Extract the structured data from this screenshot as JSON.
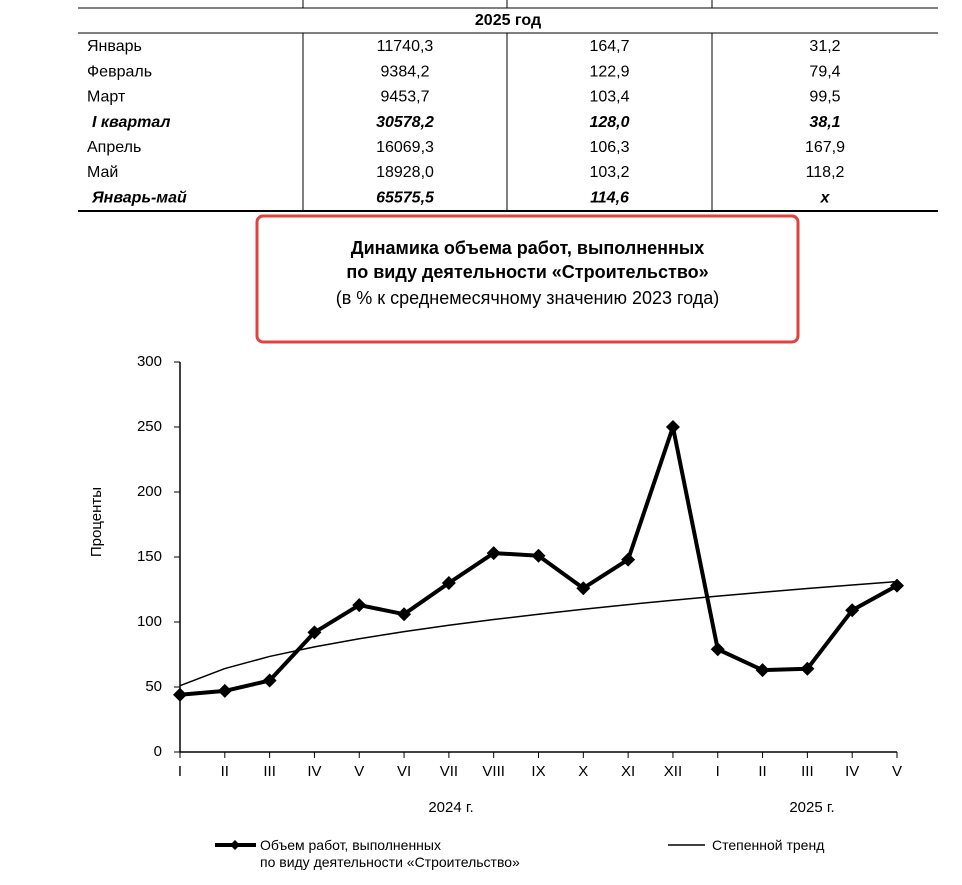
{
  "table": {
    "header": "2025 год",
    "rows": [
      [
        "Январь",
        "11740,3",
        "164,7",
        "31,2"
      ],
      [
        "Февраль",
        "9384,2",
        "122,9",
        "79,4"
      ],
      [
        "Март",
        "9453,7",
        "103,4",
        "99,5"
      ],
      [
        "I квартал",
        "30578,2",
        "128,0",
        "38,1"
      ],
      [
        "Апрель",
        "16069,3",
        "106,3",
        "167,9"
      ],
      [
        "Май",
        "18928,0",
        "103,2",
        "118,2"
      ],
      [
        "Январь-май",
        "65575,5",
        "114,6",
        "x"
      ]
    ],
    "bold_rows": [
      3,
      6
    ]
  },
  "chart_data": {
    "type": "line",
    "title": "Динамика объема работ, выполненных\nпо виду деятельности «Строительство»",
    "subtitle": "(в % к среднемесячному значению 2023 года)",
    "y_label": "Проценты",
    "groups": [
      "2024 г.",
      "2025 г."
    ],
    "categories": [
      "I",
      "II",
      "III",
      "IV",
      "V",
      "VI",
      "VII",
      "VIII",
      "IX",
      "X",
      "XI",
      "XII",
      "I",
      "II",
      "III",
      "IV",
      "V"
    ],
    "series": [
      {
        "name": "Объем работ, выполненных\nпо виду деятельности «Строительство»",
        "color": "#000000",
        "marker": "diamond",
        "values": [
          44,
          47,
          55,
          92,
          113,
          106,
          130,
          153,
          151,
          126,
          148,
          250,
          79,
          63,
          64,
          109,
          128
        ]
      },
      {
        "name": "Степенной тренд",
        "color": "#000000",
        "marker": "none",
        "values": [
          51,
          64.2,
          73.5,
          80.9,
          87.1,
          92.6,
          97.5,
          101.9,
          106,
          109.8,
          113.4,
          116.7,
          119.9,
          122.9,
          125.8,
          128.5,
          131.1
        ]
      }
    ],
    "ylim": [
      0,
      300
    ],
    "yticks": [
      0,
      50,
      100,
      150,
      200,
      250,
      300
    ]
  }
}
